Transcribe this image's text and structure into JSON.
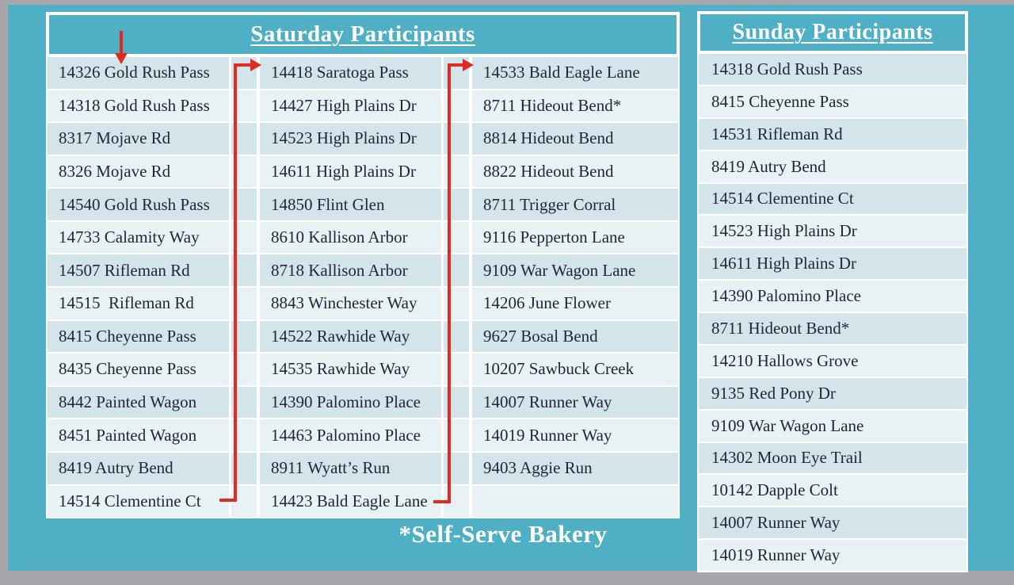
{
  "slide": {
    "colors": {
      "background_teal": "#4fb0c5",
      "frame_gray": "#a7a7ab",
      "arrow_red": "#e02b20",
      "row_dark": "#d3e4ea",
      "row_light": "#e8f1f4",
      "text_dark": "#1d2733",
      "header_text": "#ffffff"
    }
  },
  "saturday": {
    "title": "Saturday Participants",
    "columns": [
      [
        "14326 Gold Rush Pass",
        "14318 Gold Rush Pass",
        "8317 Mojave Rd",
        "8326 Mojave Rd",
        "14540 Gold Rush Pass",
        "14733 Calamity Way",
        "14507 Rifleman Rd",
        "14515  Rifleman Rd",
        "8415 Cheyenne Pass",
        "8435 Cheyenne Pass",
        "8442 Painted Wagon",
        "8451 Painted Wagon",
        "8419 Autry Bend",
        "14514 Clementine Ct"
      ],
      [
        "14418 Saratoga Pass",
        "14427 High Plains Dr",
        "14523 High Plains Dr",
        "14611 High Plains Dr",
        "14850 Flint Glen",
        "8610 Kallison Arbor",
        "8718 Kallison Arbor",
        "8843 Winchester Way",
        "14522 Rawhide Way",
        "14535 Rawhide Way",
        "14390 Palomino Place",
        "14463 Palomino Place",
        "8911 Wyatt’s Run",
        "14423 Bald Eagle Lane"
      ],
      [
        "14533 Bald Eagle Lane",
        "8711 Hideout Bend*",
        "8814 Hideout Bend",
        "8822 Hideout Bend",
        "8711 Trigger Corral",
        "9116 Pepperton Lane",
        "9109 War Wagon Lane",
        "14206 June Flower",
        "9627 Bosal Bend",
        "10207 Sawbuck Creek",
        "14007 Runner Way",
        "14019 Runner Way",
        "9403 Aggie Run",
        ""
      ]
    ]
  },
  "sunday": {
    "title": "Sunday Participants",
    "items": [
      "14318 Gold Rush Pass",
      "8415 Cheyenne Pass",
      "14531 Rifleman Rd",
      "8419 Autry Bend",
      "14514 Clementine Ct",
      "14523 High Plains Dr",
      "14611 High Plains Dr",
      "14390 Palomino Place",
      "8711 Hideout Bend*",
      "14210 Hallows Grove",
      "9135 Red Pony Dr",
      "9109 War Wagon Lane",
      "14302 Moon Eye Trail",
      "10142 Dapple Colt",
      "14007 Runner Way",
      "14019 Runner Way"
    ]
  },
  "footnote": "*Self-Serve Bakery"
}
